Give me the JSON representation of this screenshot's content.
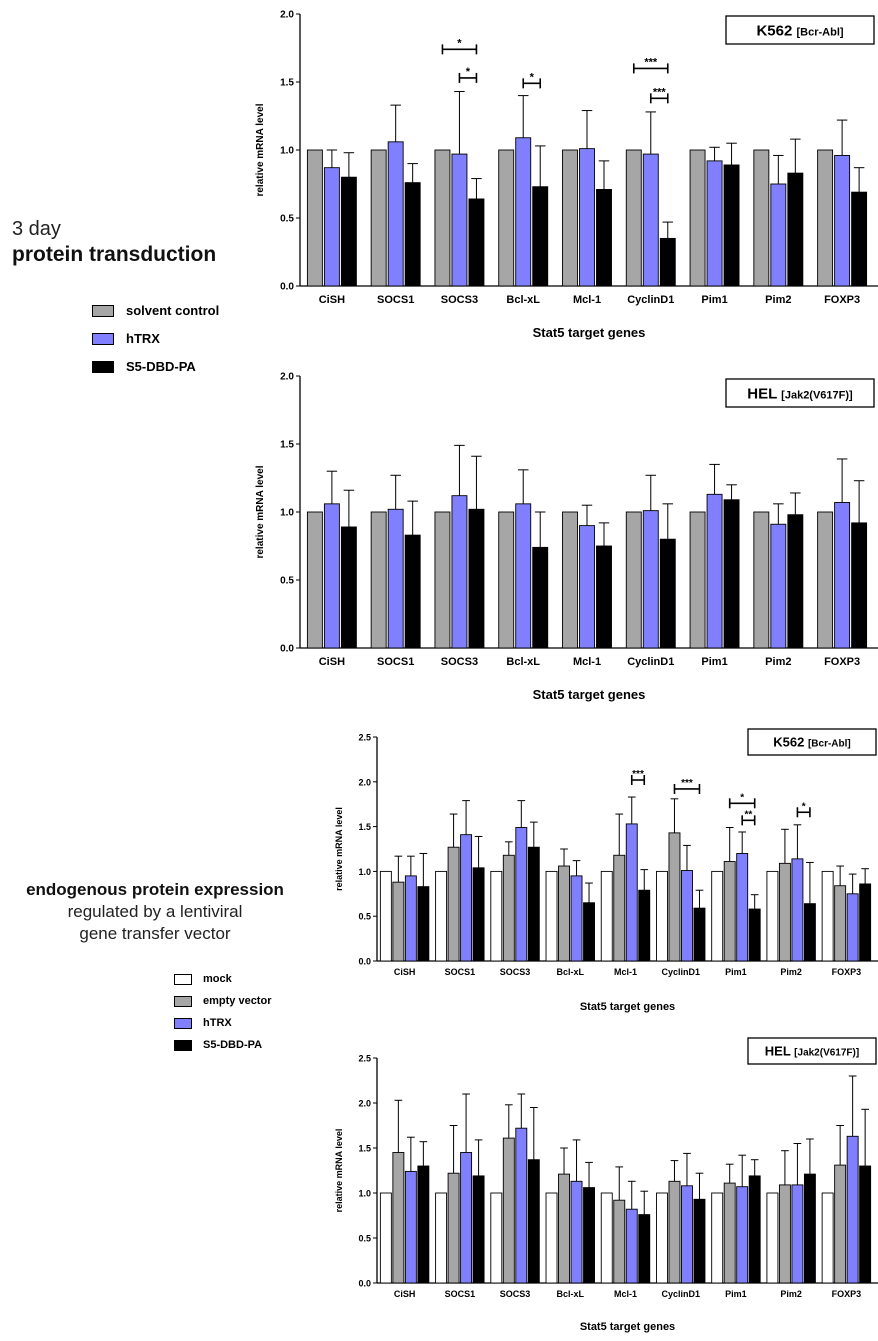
{
  "side_labels": {
    "top_line1": "3 day",
    "top_line2": "protein transduction",
    "bottom_line1": "endogenous protein expression",
    "bottom_line2": "regulated by a lentiviral",
    "bottom_line3": "gene transfer vector"
  },
  "legend_top": [
    {
      "label": "solvent control",
      "color": "#a6a6a6"
    },
    {
      "label": "hTRX",
      "color": "#8080ff"
    },
    {
      "label": "S5-DBD-PA",
      "color": "#000000"
    }
  ],
  "legend_bottom": [
    {
      "label": "mock",
      "color": "#ffffff"
    },
    {
      "label": "empty vector",
      "color": "#a6a6a6"
    },
    {
      "label": "hTRX",
      "color": "#8080ff"
    },
    {
      "label": "S5-DBD-PA",
      "color": "#000000"
    }
  ],
  "chart_data": [
    {
      "type": "bar",
      "cell_line": "K562",
      "cell_line_detail": "[Bcr-Abl]",
      "xlabel": "Stat5 target genes",
      "ylabel": "relative mRNA level",
      "ylim": [
        0,
        2.0
      ],
      "yticks": [
        "0.0",
        "0.5",
        "1.0",
        "1.5",
        "2.0"
      ],
      "categories": [
        "CiSH",
        "SOCS1",
        "SOCS3",
        "Bcl-xL",
        "Mcl-1",
        "CyclinD1",
        "Pim1",
        "Pim2",
        "FOXP3"
      ],
      "series": [
        {
          "name": "solvent control",
          "color": "#a6a6a6",
          "values": [
            1.0,
            1.0,
            1.0,
            1.0,
            1.0,
            1.0,
            1.0,
            1.0,
            1.0
          ],
          "errors": [
            0,
            0,
            0,
            0,
            0,
            0,
            0,
            0,
            0
          ]
        },
        {
          "name": "hTRX",
          "color": "#8080ff",
          "values": [
            0.87,
            1.06,
            0.97,
            1.09,
            1.01,
            0.97,
            0.92,
            0.75,
            0.96
          ],
          "errors": [
            0.13,
            0.27,
            0.46,
            0.31,
            0.28,
            0.31,
            0.1,
            0.21,
            0.26
          ]
        },
        {
          "name": "S5-DBD-PA",
          "color": "#000000",
          "values": [
            0.8,
            0.76,
            0.64,
            0.73,
            0.71,
            0.35,
            0.89,
            0.83,
            0.69
          ],
          "errors": [
            0.18,
            0.14,
            0.15,
            0.3,
            0.21,
            0.12,
            0.16,
            0.25,
            0.18
          ]
        }
      ],
      "significance": [
        {
          "category_index": 2,
          "from_series": 0,
          "to_series": 2,
          "level": 1.74,
          "label": "*"
        },
        {
          "category_index": 2,
          "from_series": 1,
          "to_series": 2,
          "level": 1.53,
          "label": "*"
        },
        {
          "category_index": 3,
          "from_series": 1,
          "to_series": 2,
          "level": 1.49,
          "label": "*"
        },
        {
          "category_index": 5,
          "from_series": 0,
          "to_series": 2,
          "level": 1.6,
          "label": "***"
        },
        {
          "category_index": 5,
          "from_series": 1,
          "to_series": 2,
          "level": 1.38,
          "label": "***"
        }
      ]
    },
    {
      "type": "bar",
      "cell_line": "HEL",
      "cell_line_detail": "[Jak2(V617F)]",
      "xlabel": "Stat5 target genes",
      "ylabel": "relative mRNA level",
      "ylim": [
        0,
        2.0
      ],
      "yticks": [
        "0.0",
        "0.5",
        "1.0",
        "1.5",
        "2.0"
      ],
      "categories": [
        "CiSH",
        "SOCS1",
        "SOCS3",
        "Bcl-xL",
        "Mcl-1",
        "CyclinD1",
        "Pim1",
        "Pim2",
        "FOXP3"
      ],
      "series": [
        {
          "name": "solvent control",
          "color": "#a6a6a6",
          "values": [
            1.0,
            1.0,
            1.0,
            1.0,
            1.0,
            1.0,
            1.0,
            1.0,
            1.0
          ],
          "errors": [
            0,
            0,
            0,
            0,
            0,
            0,
            0,
            0,
            0
          ]
        },
        {
          "name": "hTRX",
          "color": "#8080ff",
          "values": [
            1.06,
            1.02,
            1.12,
            1.06,
            0.9,
            1.01,
            1.13,
            0.91,
            1.07
          ],
          "errors": [
            0.24,
            0.25,
            0.37,
            0.25,
            0.15,
            0.26,
            0.22,
            0.15,
            0.32
          ]
        },
        {
          "name": "S5-DBD-PA",
          "color": "#000000",
          "values": [
            0.89,
            0.83,
            1.02,
            0.74,
            0.75,
            0.8,
            1.09,
            0.98,
            0.92
          ],
          "errors": [
            0.27,
            0.25,
            0.39,
            0.26,
            0.17,
            0.26,
            0.11,
            0.16,
            0.31
          ]
        }
      ],
      "significance": []
    },
    {
      "type": "bar",
      "cell_line": "K562",
      "cell_line_detail": "[Bcr-Abl]",
      "xlabel": "Stat5 target genes",
      "ylabel": "relative mRNA level",
      "ylim": [
        0,
        2.5
      ],
      "yticks": [
        "0.0",
        "0.5",
        "1.0",
        "1.5",
        "2.0",
        "2.5"
      ],
      "categories": [
        "CiSH",
        "SOCS1",
        "SOCS3",
        "Bcl-xL",
        "Mcl-1",
        "CyclinD1",
        "Pim1",
        "Pim2",
        "FOXP3"
      ],
      "series": [
        {
          "name": "mock",
          "color": "#ffffff",
          "values": [
            1.0,
            1.0,
            1.0,
            1.0,
            1.0,
            1.0,
            1.0,
            1.0,
            1.0
          ],
          "errors": [
            0,
            0,
            0,
            0,
            0,
            0,
            0,
            0,
            0
          ]
        },
        {
          "name": "empty vector",
          "color": "#a6a6a6",
          "values": [
            0.88,
            1.27,
            1.18,
            1.06,
            1.18,
            1.43,
            1.11,
            1.09,
            0.84
          ],
          "errors": [
            0.29,
            0.37,
            0.15,
            0.19,
            0.46,
            0.38,
            0.38,
            0.38,
            0.22
          ]
        },
        {
          "name": "hTRX",
          "color": "#8080ff",
          "values": [
            0.95,
            1.41,
            1.49,
            0.95,
            1.53,
            1.01,
            1.2,
            1.14,
            0.75
          ],
          "errors": [
            0.22,
            0.38,
            0.3,
            0.17,
            0.3,
            0.28,
            0.24,
            0.38,
            0.22
          ]
        },
        {
          "name": "S5-DBD-PA",
          "color": "#000000",
          "values": [
            0.83,
            1.04,
            1.27,
            0.65,
            0.79,
            0.59,
            0.58,
            0.64,
            0.86
          ],
          "errors": [
            0.37,
            0.35,
            0.28,
            0.22,
            0.23,
            0.2,
            0.16,
            0.46,
            0.17
          ]
        }
      ],
      "significance": [
        {
          "category_index": 4,
          "from_series": 2,
          "to_series": 3,
          "level": 2.02,
          "label": "***"
        },
        {
          "category_index": 5,
          "from_series": 1,
          "to_series": 3,
          "level": 1.92,
          "label": "***"
        },
        {
          "category_index": 6,
          "from_series": 1,
          "to_series": 3,
          "level": 1.76,
          "label": "*"
        },
        {
          "category_index": 6,
          "from_series": 2,
          "to_series": 3,
          "level": 1.57,
          "label": "**"
        },
        {
          "category_index": 7,
          "from_series": 2,
          "to_series": 3,
          "level": 1.66,
          "label": "*"
        }
      ]
    },
    {
      "type": "bar",
      "cell_line": "HEL",
      "cell_line_detail": "[Jak2(V617F)]",
      "xlabel": "Stat5 target genes",
      "ylabel": "relative mRNA level",
      "ylim": [
        0,
        2.5
      ],
      "yticks": [
        "0.0",
        "0.5",
        "1.0",
        "1.5",
        "2.0",
        "2.5"
      ],
      "categories": [
        "CiSH",
        "SOCS1",
        "SOCS3",
        "Bcl-xL",
        "Mcl-1",
        "CyclinD1",
        "Pim1",
        "Pim2",
        "FOXP3"
      ],
      "series": [
        {
          "name": "mock",
          "color": "#ffffff",
          "values": [
            1.0,
            1.0,
            1.0,
            1.0,
            1.0,
            1.0,
            1.0,
            1.0,
            1.0
          ],
          "errors": [
            0,
            0,
            0,
            0,
            0,
            0,
            0,
            0,
            0
          ]
        },
        {
          "name": "empty vector",
          "color": "#a6a6a6",
          "values": [
            1.45,
            1.22,
            1.61,
            1.21,
            0.92,
            1.13,
            1.11,
            1.09,
            1.31
          ],
          "errors": [
            0.58,
            0.53,
            0.37,
            0.29,
            0.37,
            0.23,
            0.21,
            0.38,
            0.44
          ]
        },
        {
          "name": "hTRX",
          "color": "#8080ff",
          "values": [
            1.24,
            1.45,
            1.72,
            1.13,
            0.82,
            1.08,
            1.07,
            1.09,
            1.63
          ],
          "errors": [
            0.38,
            0.65,
            0.38,
            0.46,
            0.31,
            0.36,
            0.35,
            0.46,
            0.67
          ]
        },
        {
          "name": "S5-DBD-PA",
          "color": "#000000",
          "values": [
            1.3,
            1.19,
            1.37,
            1.06,
            0.76,
            0.93,
            1.19,
            1.21,
            1.3
          ],
          "errors": [
            0.27,
            0.4,
            0.58,
            0.28,
            0.26,
            0.29,
            0.18,
            0.39,
            0.63
          ]
        }
      ],
      "significance": []
    }
  ]
}
